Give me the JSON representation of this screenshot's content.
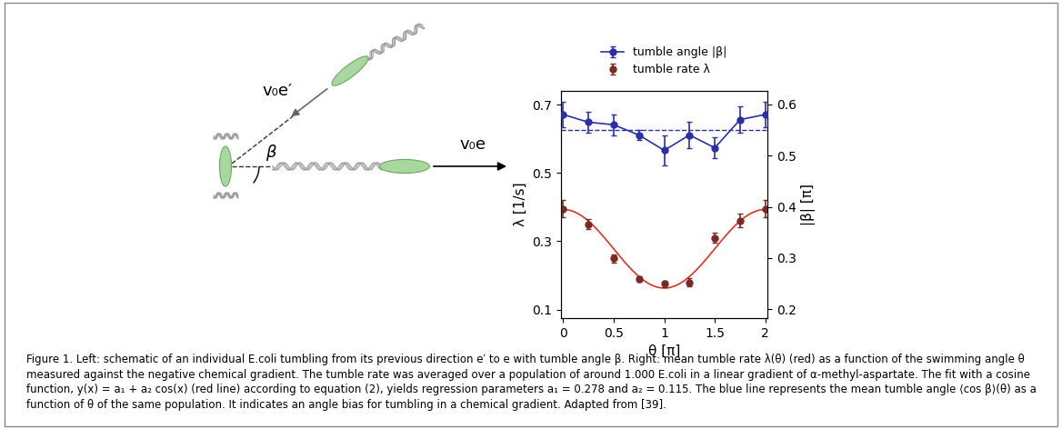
{
  "schematic": {
    "label_previous": "v₀e′",
    "label_new": "v₀e",
    "label_angle": "β"
  },
  "chart_data": {
    "type": "scatter",
    "x": [
      0,
      0.25,
      0.5,
      0.75,
      1,
      1.25,
      1.5,
      1.75,
      2
    ],
    "xlim": [
      -0.02,
      2.02
    ],
    "xticks": [
      0,
      0.5,
      1,
      1.5,
      2
    ],
    "x_label": "θ [π]",
    "ylim": [
      0.075,
      0.74
    ],
    "yticks": [
      0.1,
      0.3,
      0.5,
      0.7
    ],
    "y_label": "λ [1/s]",
    "y2lim": [
      0.183,
      0.626
    ],
    "y2ticks": [
      0.2,
      0.3,
      0.4,
      0.5,
      0.6
    ],
    "y2_label": "|β| [π]",
    "legend": "upper center",
    "series": [
      {
        "name": "tumble angle |β|",
        "color": "#2b2fa6",
        "axis": "y2",
        "marker": "o",
        "line_style": "solid",
        "values": [
          0.58,
          0.565,
          0.56,
          0.54,
          0.51,
          0.54,
          0.515,
          0.57,
          0.58
        ],
        "errors": [
          0.025,
          0.02,
          0.02,
          0.01,
          0.03,
          0.025,
          0.02,
          0.025,
          0.025
        ]
      },
      {
        "name": "tumble rate λ",
        "color": "#7a2a22",
        "marker": "o",
        "line_style": "none",
        "values": [
          0.395,
          0.35,
          0.25,
          0.19,
          0.175,
          0.18,
          0.31,
          0.36,
          0.395
        ],
        "errors": [
          0.025,
          0.015,
          0.012,
          0.008,
          0.01,
          0.012,
          0.015,
          0.02,
          0.025
        ]
      }
    ],
    "fit": {
      "a1": 0.278,
      "a2": 0.115,
      "color": "#e0302a",
      "line_style": "solid"
    },
    "reference_line": {
      "value": 0.55,
      "axis": "y2",
      "color": "#2b2fa6",
      "line_style": "dashed"
    }
  },
  "caption": "Figure 1. Left: schematic of an individual E.coli tumbling from its previous direction e′ to e with tumble angle β. Right: mean tumble rate λ(θ) (red) as a function of the swimming angle θ measured against the negative chemical gradient. The tumble rate was averaged over a population of around 1.000 E.coli in a linear gradient of α-methyl-aspartate. The fit with a cosine function, y(x) = a₁ + a₂ cos(x) (red line) according to equation (2), yields regression parameters a₁ = 0.278 and a₂ = 0.115. The blue line represents the mean tumble angle ⟨cos β⟩(θ) as a function of θ of the same population. It indicates an angle bias for tumbling in a chemical gradient. Adapted from [39]."
}
